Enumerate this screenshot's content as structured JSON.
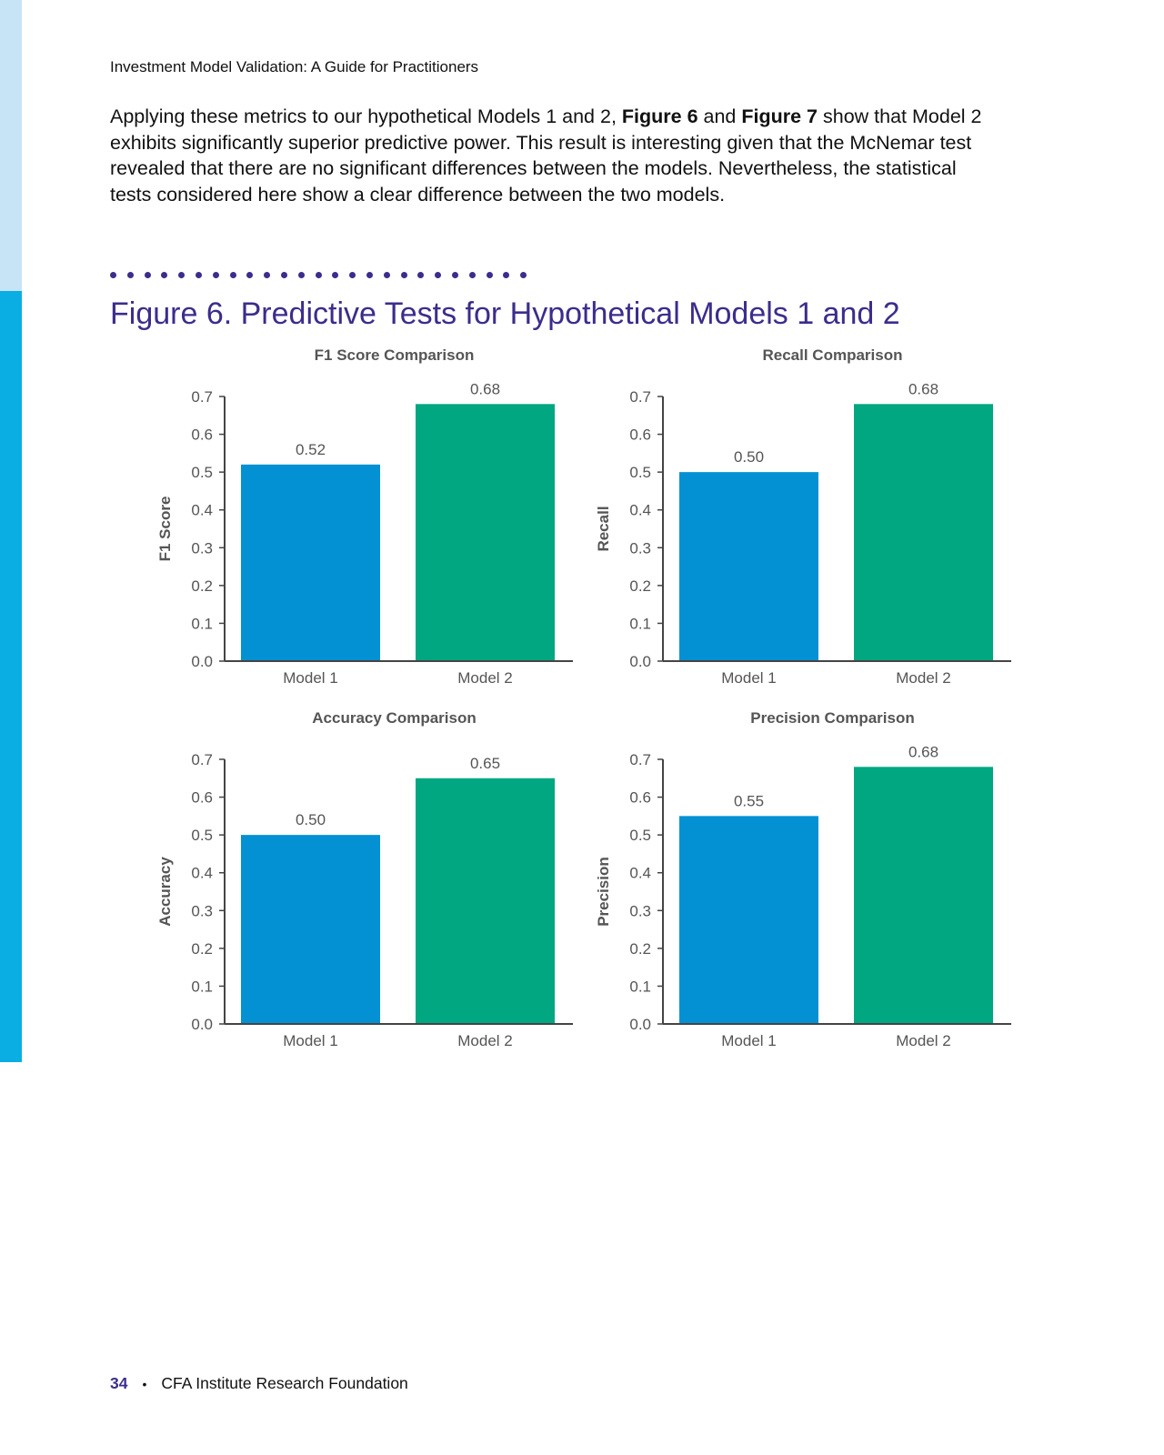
{
  "document": {
    "running_head": "Investment Model Validation: A Guide for Practitioners",
    "paragraph": {
      "part1": "Applying these metrics to our hypothetical Models 1 and 2, ",
      "fig6": "Figure 6",
      "part2": " and ",
      "fig7": "Figure 7",
      "part3": " show that Model 2 exhibits significantly superior predictive power. This result is interesting given that the McNemar test revealed that there are no significant differences between the models. Nevertheless, the statistical tests considered here show a clear difference between the two models."
    },
    "figure_title": "Figure 6. Predictive Tests for Hypothetical Models 1 and 2",
    "footer": {
      "page_number": "34",
      "publisher": "CFA Institute Research Foundation"
    }
  },
  "colors": {
    "model1": "#0391d3",
    "model2": "#00a780",
    "accent": "#3b2d8c",
    "axis": "#444444",
    "text": "#555555"
  },
  "chart_data": [
    {
      "type": "bar",
      "title": "F1 Score Comparison",
      "ylabel": "F1 Score",
      "xlabel": "",
      "categories": [
        "Model 1",
        "Model 2"
      ],
      "values": [
        0.52,
        0.68
      ],
      "data_labels": [
        "0.52",
        "0.68"
      ],
      "ylim": [
        0,
        0.7
      ],
      "yticks": [
        "0.0",
        "0.1",
        "0.2",
        "0.3",
        "0.4",
        "0.5",
        "0.6",
        "0.7"
      ],
      "grid": false
    },
    {
      "type": "bar",
      "title": "Recall Comparison",
      "ylabel": "Recall",
      "xlabel": "",
      "categories": [
        "Model 1",
        "Model 2"
      ],
      "values": [
        0.5,
        0.68
      ],
      "data_labels": [
        "0.50",
        "0.68"
      ],
      "ylim": [
        0,
        0.7
      ],
      "yticks": [
        "0.0",
        "0.1",
        "0.2",
        "0.3",
        "0.4",
        "0.5",
        "0.6",
        "0.7"
      ],
      "grid": false
    },
    {
      "type": "bar",
      "title": "Accuracy Comparison",
      "ylabel": "Accuracy",
      "xlabel": "",
      "categories": [
        "Model 1",
        "Model 2"
      ],
      "values": [
        0.5,
        0.65
      ],
      "data_labels": [
        "0.50",
        "0.65"
      ],
      "ylim": [
        0,
        0.7
      ],
      "yticks": [
        "0.0",
        "0.1",
        "0.2",
        "0.3",
        "0.4",
        "0.5",
        "0.6",
        "0.7"
      ],
      "grid": false
    },
    {
      "type": "bar",
      "title": "Precision Comparison",
      "ylabel": "Precision",
      "xlabel": "",
      "categories": [
        "Model 1",
        "Model 2"
      ],
      "values": [
        0.55,
        0.68
      ],
      "data_labels": [
        "0.55",
        "0.68"
      ],
      "ylim": [
        0,
        0.7
      ],
      "yticks": [
        "0.0",
        "0.1",
        "0.2",
        "0.3",
        "0.4",
        "0.5",
        "0.6",
        "0.7"
      ],
      "grid": false
    }
  ]
}
